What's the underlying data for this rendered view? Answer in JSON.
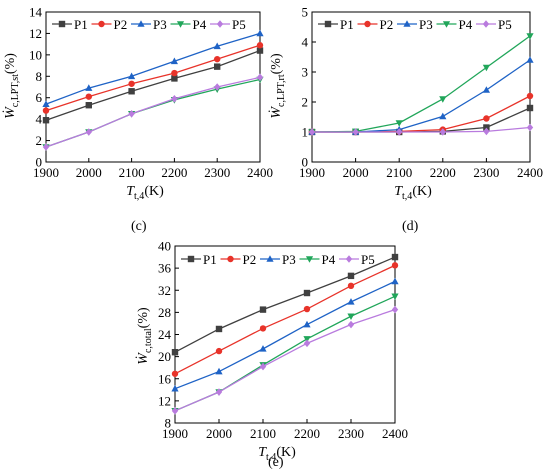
{
  "colors": {
    "P1": "#404040",
    "P2": "#e8332a",
    "P3": "#1f63c6",
    "P4": "#21a65a",
    "P5": "#b97bde"
  },
  "chart_data": [
    {
      "type": "line",
      "caption": "(c)",
      "xlabel_main": "T",
      "xlabel_sub": "t,4",
      "xlabel_unit": "(K)",
      "ylabel_main": "Ẇ",
      "ylabel_sub": "c,LPT,st",
      "ylabel_unit": "(%)",
      "x": [
        1900,
        2000,
        2100,
        2200,
        2300,
        2400
      ],
      "xlim": [
        1900,
        2400
      ],
      "xticks": [
        "1900",
        "2000",
        "2100",
        "2200",
        "2300",
        "2400"
      ],
      "ylim": [
        0,
        14
      ],
      "yticks": [
        "0",
        "2",
        "4",
        "6",
        "8",
        "10",
        "12",
        "14"
      ],
      "legend": "top-left, horizontal",
      "series": [
        {
          "name": "P1",
          "marker": "square",
          "values": [
            3.9,
            5.3,
            6.6,
            7.8,
            8.9,
            10.4
          ]
        },
        {
          "name": "P2",
          "marker": "circle",
          "values": [
            4.8,
            6.1,
            7.3,
            8.3,
            9.6,
            10.9
          ]
        },
        {
          "name": "P3",
          "marker": "triangle-up",
          "values": [
            5.4,
            6.9,
            8.0,
            9.4,
            10.8,
            12.0
          ]
        },
        {
          "name": "P4",
          "marker": "triangle-down",
          "values": [
            1.4,
            2.8,
            4.5,
            5.8,
            6.8,
            7.7
          ]
        },
        {
          "name": "P5",
          "marker": "diamond",
          "values": [
            1.4,
            2.8,
            4.5,
            5.9,
            7.0,
            7.9
          ]
        }
      ]
    },
    {
      "type": "line",
      "caption": "(d)",
      "xlabel_main": "T",
      "xlabel_sub": "t,4",
      "xlabel_unit": "(K)",
      "ylabel_main": "Ẇ",
      "ylabel_sub": "c,LPT,rt",
      "ylabel_unit": "(%)",
      "x": [
        1900,
        2000,
        2100,
        2200,
        2300,
        2400
      ],
      "xlim": [
        1900,
        2400
      ],
      "xticks": [
        "1900",
        "2000",
        "2100",
        "2200",
        "2300",
        "2400"
      ],
      "ylim": [
        0,
        5
      ],
      "yticks": [
        "0",
        "1",
        "2",
        "3",
        "4",
        "5"
      ],
      "legend": "top-left, horizontal",
      "series": [
        {
          "name": "P1",
          "marker": "square",
          "values": [
            1.0,
            1.0,
            1.0,
            1.02,
            1.15,
            1.8
          ]
        },
        {
          "name": "P2",
          "marker": "circle",
          "values": [
            1.0,
            1.0,
            1.02,
            1.08,
            1.45,
            2.2
          ]
        },
        {
          "name": "P3",
          "marker": "triangle-up",
          "values": [
            1.0,
            1.0,
            1.08,
            1.52,
            2.4,
            3.4
          ]
        },
        {
          "name": "P4",
          "marker": "triangle-down",
          "values": [
            1.0,
            1.02,
            1.3,
            2.1,
            3.15,
            4.2
          ]
        },
        {
          "name": "P5",
          "marker": "diamond",
          "values": [
            1.0,
            1.0,
            1.0,
            1.0,
            1.02,
            1.15
          ]
        }
      ]
    },
    {
      "type": "line",
      "caption": "(e)",
      "xlabel_main": "T",
      "xlabel_sub": "t,4",
      "xlabel_unit": "(K)",
      "ylabel_main": "Ẇ",
      "ylabel_sub": "c,total",
      "ylabel_unit": "(%)",
      "x": [
        1900,
        2000,
        2100,
        2200,
        2300,
        2400
      ],
      "xlim": [
        1900,
        2400
      ],
      "xticks": [
        "1900",
        "2000",
        "2100",
        "2200",
        "2300",
        "2400"
      ],
      "ylim": [
        8,
        40
      ],
      "yticks": [
        "8",
        "12",
        "16",
        "20",
        "24",
        "28",
        "32",
        "36",
        "40"
      ],
      "legend": "top-left, horizontal",
      "series": [
        {
          "name": "P1",
          "marker": "square",
          "values": [
            20.8,
            25.0,
            28.5,
            31.5,
            34.6,
            38.0
          ]
        },
        {
          "name": "P2",
          "marker": "circle",
          "values": [
            16.9,
            21.0,
            25.1,
            28.6,
            32.8,
            36.5
          ]
        },
        {
          "name": "P3",
          "marker": "triangle-up",
          "values": [
            14.2,
            17.3,
            21.4,
            25.8,
            29.9,
            33.6
          ]
        },
        {
          "name": "P4",
          "marker": "triangle-down",
          "values": [
            10.2,
            13.6,
            18.5,
            23.2,
            27.3,
            30.9
          ]
        },
        {
          "name": "P5",
          "marker": "diamond",
          "values": [
            10.2,
            13.6,
            18.2,
            22.4,
            25.8,
            28.5
          ]
        }
      ]
    }
  ]
}
